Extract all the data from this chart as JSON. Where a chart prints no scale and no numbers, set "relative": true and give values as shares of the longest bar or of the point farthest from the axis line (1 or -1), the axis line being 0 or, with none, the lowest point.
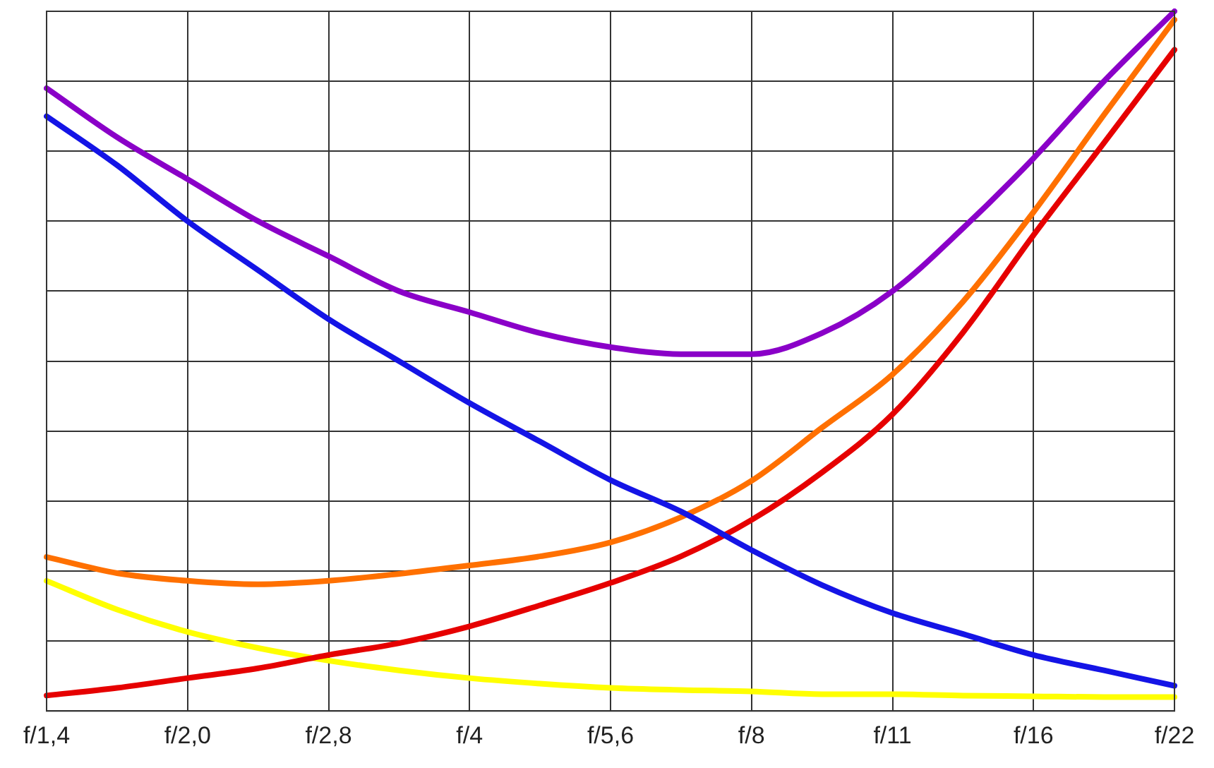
{
  "chart_data": {
    "type": "line",
    "relative": true,
    "grid": true,
    "categories": [
      "f/1,4",
      null,
      "f/2,0",
      null,
      "f/2,8",
      null,
      "f/4",
      null,
      "f/5,6",
      null,
      "f/8",
      null,
      "f/11",
      null,
      "f/16",
      null,
      "f/22"
    ],
    "series": [
      {
        "color": "#8a00c8",
        "values": [
          0.89,
          0.82,
          0.76,
          0.7,
          0.65,
          0.6,
          0.57,
          0.54,
          0.52,
          0.51,
          0.51,
          0.54,
          0.6,
          0.69,
          0.79,
          0.9,
          1
        ]
      },
      {
        "color": "#1414e6",
        "values": [
          0.85,
          0.78,
          0.7,
          0.63,
          0.56,
          0.5,
          0.44,
          0.385,
          0.33,
          0.285,
          0.23,
          0.18,
          0.14,
          0.11,
          0.08,
          0.058,
          0.036
        ]
      },
      {
        "color": "#ff7000",
        "values": [
          0.22,
          0.197,
          0.186,
          0.181,
          0.186,
          0.196,
          0.208,
          0.221,
          0.241,
          0.277,
          0.329,
          0.405,
          0.481,
          0.585,
          0.713,
          0.852,
          0.988
        ]
      },
      {
        "color": "#e60000",
        "values": [
          0.022,
          0.033,
          0.047,
          0.061,
          0.08,
          0.097,
          0.121,
          0.151,
          0.183,
          0.221,
          0.273,
          0.341,
          0.424,
          0.541,
          0.68,
          0.812,
          0.945
        ]
      },
      {
        "color": "#ffff00",
        "values": [
          0.186,
          0.145,
          0.113,
          0.09,
          0.072,
          0.058,
          0.047,
          0.039,
          0.033,
          0.03,
          0.028,
          0.024,
          0.024,
          0.022,
          0.021,
          0.02,
          0.02
        ]
      }
    ]
  }
}
